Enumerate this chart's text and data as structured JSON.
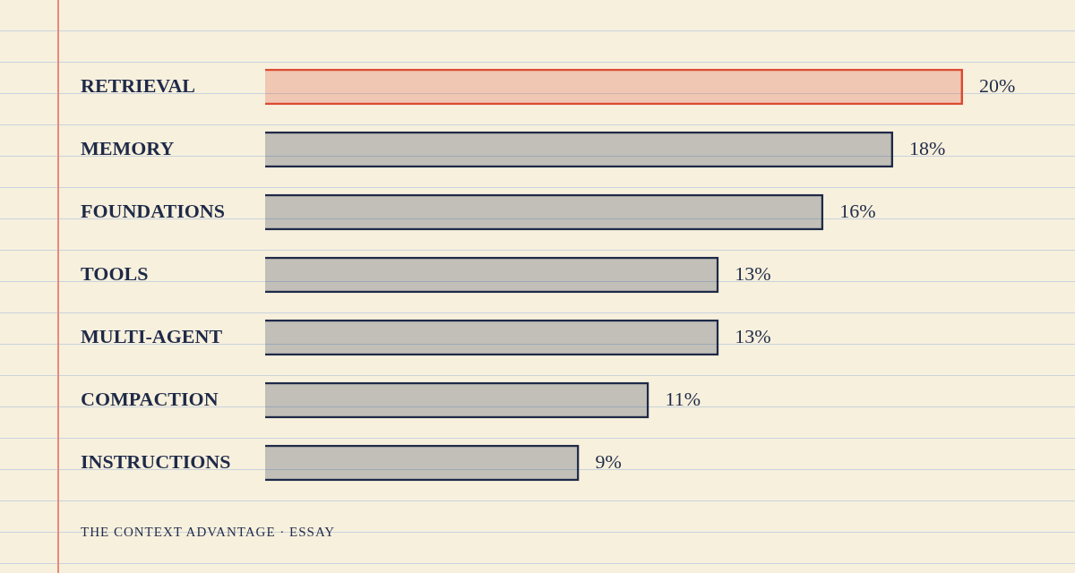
{
  "chart_data": {
    "type": "bar",
    "orientation": "horizontal",
    "categories": [
      "RETRIEVAL",
      "MEMORY",
      "FOUNDATIONS",
      "TOOLS",
      "MULTI-AGENT",
      "COMPACTION",
      "INSTRUCTIONS"
    ],
    "values": [
      20,
      18,
      16,
      13,
      13,
      11,
      9
    ],
    "value_labels": [
      "20%",
      "18%",
      "16%",
      "13%",
      "13%",
      "11%",
      "9%"
    ],
    "colors": [
      "#dc4a32",
      "#1f2a48",
      "#1f2a48",
      "#1f2a48",
      "#1f2a48",
      "#1f2a48",
      "#1f2a48"
    ],
    "annotations": [
      "THE CONTEXT ADVANTAGE · ESSAY"
    ]
  }
}
